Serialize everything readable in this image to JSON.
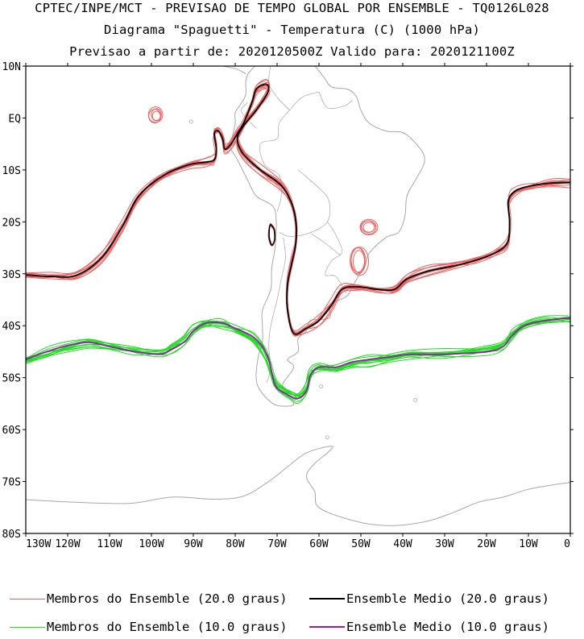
{
  "titles": {
    "line1": "CPTEC/INPE/MCT - PREVISAO DE TEMPO GLOBAL POR ENSEMBLE - TQ0126L028",
    "line2": "Diagrama \"Spaguetti\" - Temperatura (C) (1000 hPa)",
    "line3": "Previsao a partir de: 2020120500Z  Valido para: 2020121100Z"
  },
  "axes": {
    "lat_labels": [
      "10N",
      "EQ",
      "10S",
      "20S",
      "30S",
      "40S",
      "50S",
      "60S",
      "70S",
      "80S"
    ],
    "lon_labels": [
      "130W",
      "120W",
      "110W",
      "100W",
      "90W",
      "80W",
      "70W",
      "60W",
      "50W",
      "40W",
      "30W",
      "20W",
      "10W",
      "0"
    ],
    "lat_range": [
      -80,
      10
    ],
    "lon_range": [
      -130,
      0
    ]
  },
  "colors": {
    "member20": "#f06060",
    "mean20": "#000000",
    "member10": "#22dd22",
    "mean10": "#9a1ab0",
    "coast": "#a8a8a8"
  },
  "legend": {
    "member20": "Membros do Ensemble (20.0 graus)",
    "mean20": "Ensemble Medio (20.0 graus)",
    "member10": "Membros do Ensemble (10.0 graus)",
    "mean10": "Ensemble Medio (10.0 graus)"
  },
  "isotherms": {
    "mean20": [
      [
        -130,
        -30.2
      ],
      [
        -124,
        -30.5
      ],
      [
        -118,
        -30.3
      ],
      [
        -112,
        -27
      ],
      [
        -107,
        -21
      ],
      [
        -103,
        -15
      ],
      [
        -97,
        -11
      ],
      [
        -91,
        -9
      ],
      [
        -87,
        -8.5
      ],
      [
        -85,
        -8
      ],
      [
        -84.5,
        -6
      ],
      [
        -85,
        -3
      ],
      [
        -84,
        -2.5
      ],
      [
        -83,
        -4
      ],
      [
        -82.5,
        -6
      ],
      [
        -81,
        -5
      ],
      [
        -79.5,
        -3
      ],
      [
        -78,
        -1
      ],
      [
        -76,
        3
      ],
      [
        -75,
        5.5
      ],
      [
        -73,
        6.5
      ],
      [
        -72,
        6
      ],
      [
        -72.5,
        4.5
      ],
      [
        -75,
        1.5
      ],
      [
        -78,
        -1.5
      ],
      [
        -79.5,
        -4
      ],
      [
        -78,
        -7
      ],
      [
        -74,
        -10
      ],
      [
        -69,
        -13
      ],
      [
        -66.5,
        -16.5
      ],
      [
        -65.5,
        -20
      ],
      [
        -65.5,
        -24
      ],
      [
        -66.5,
        -28
      ],
      [
        -67.5,
        -32
      ],
      [
        -67.5,
        -37
      ],
      [
        -66,
        -41.5
      ],
      [
        -63,
        -40.5
      ],
      [
        -60,
        -39
      ],
      [
        -57,
        -36
      ],
      [
        -54.5,
        -33
      ],
      [
        -51,
        -32.5
      ],
      [
        -46,
        -33
      ],
      [
        -42,
        -33
      ],
      [
        -39,
        -31
      ],
      [
        -34,
        -29.5
      ],
      [
        -28,
        -28.5
      ],
      [
        -23,
        -27.5
      ],
      [
        -18,
        -26
      ],
      [
        -15,
        -24
      ],
      [
        -14.5,
        -20
      ],
      [
        -14.8,
        -16
      ],
      [
        -13,
        -14
      ],
      [
        -9,
        -13
      ],
      [
        -4,
        -12.5
      ],
      [
        0,
        -12.4
      ]
    ],
    "island20": [
      [
        -71.5,
        -20.5
      ],
      [
        -70.7,
        -21.5
      ],
      [
        -70.6,
        -23.5
      ],
      [
        -71.3,
        -24.5
      ],
      [
        -71.9,
        -23
      ],
      [
        -71.8,
        -21
      ],
      [
        -71.5,
        -20.5
      ]
    ],
    "mean10": [
      [
        -130,
        -46.5
      ],
      [
        -125,
        -45
      ],
      [
        -120,
        -43.8
      ],
      [
        -115,
        -43.2
      ],
      [
        -110,
        -44
      ],
      [
        -104,
        -45
      ],
      [
        -98,
        -45.5
      ],
      [
        -95,
        -44.5
      ],
      [
        -92,
        -43
      ],
      [
        -90,
        -41
      ],
      [
        -87,
        -39.5
      ],
      [
        -83,
        -39.5
      ],
      [
        -80,
        -40.5
      ],
      [
        -76,
        -42
      ],
      [
        -73.5,
        -44
      ],
      [
        -72,
        -46.5
      ],
      [
        -71,
        -50
      ],
      [
        -70,
        -52
      ],
      [
        -67,
        -53.5
      ],
      [
        -65,
        -54
      ],
      [
        -63,
        -52.5
      ],
      [
        -62,
        -49.5
      ],
      [
        -60,
        -48
      ],
      [
        -56,
        -48
      ],
      [
        -52,
        -47
      ],
      [
        -48,
        -46.5
      ],
      [
        -43,
        -46
      ],
      [
        -38,
        -45.5
      ],
      [
        -30,
        -45.5
      ],
      [
        -20,
        -45
      ],
      [
        -16,
        -44
      ],
      [
        -14,
        -42
      ],
      [
        -11,
        -40
      ],
      [
        -6,
        -39
      ],
      [
        0,
        -38.5
      ]
    ]
  }
}
